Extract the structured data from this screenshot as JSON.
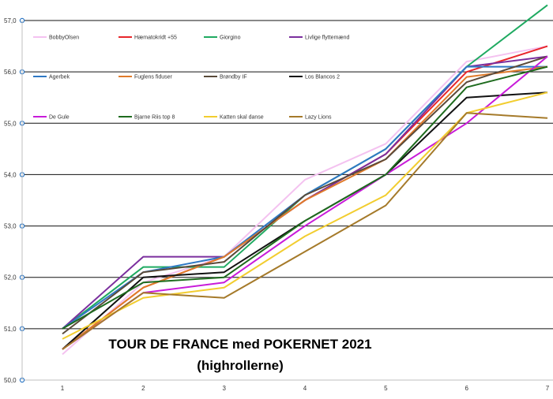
{
  "chart_data": {
    "type": "line",
    "title": "TOUR DE FRANCE med POKERNET 2021",
    "subtitle": "(highrollerne)",
    "xlabel": "",
    "ylabel": "",
    "x": [
      "1",
      "2",
      "3",
      "4",
      "5",
      "6",
      "7"
    ],
    "ylim": [
      50.0,
      57.0
    ],
    "yticks": [
      "50,0",
      "51,0",
      "52,0",
      "53,0",
      "54,0",
      "55,0",
      "56,0",
      "57,0"
    ],
    "grid": true,
    "legend_position": "top-left, inside plot",
    "series": [
      {
        "name": "BobbyOlsen",
        "color": "#f4c2f0",
        "values": [
          50.5,
          51.9,
          52.4,
          53.9,
          54.6,
          56.2,
          56.5
        ]
      },
      {
        "name": "Hæmatokridt +55",
        "color": "#e8262b",
        "values": [
          50.6,
          51.8,
          52.4,
          53.5,
          54.4,
          56.0,
          56.5
        ]
      },
      {
        "name": "Giorgino",
        "color": "#1faa61",
        "values": [
          51.0,
          52.2,
          52.2,
          53.6,
          54.5,
          56.1,
          57.3
        ]
      },
      {
        "name": "Livlige flyttemænd",
        "color": "#7b2f9e",
        "values": [
          51.0,
          52.4,
          52.4,
          53.5,
          54.4,
          56.1,
          56.3
        ]
      },
      {
        "name": "Agerbek",
        "color": "#2f78c4",
        "values": [
          51.0,
          52.1,
          52.4,
          53.6,
          54.5,
          56.1,
          56.1
        ]
      },
      {
        "name": "Fuglens fiduser",
        "color": "#e07b2a",
        "values": [
          50.6,
          51.8,
          52.4,
          53.5,
          54.3,
          55.9,
          56.1
        ]
      },
      {
        "name": "Brøndby IF",
        "color": "#5a4a3a",
        "values": [
          50.9,
          52.1,
          52.3,
          53.6,
          54.3,
          55.8,
          56.3
        ]
      },
      {
        "name": "Los Blancos 2",
        "color": "#111111",
        "values": [
          50.6,
          52.0,
          52.1,
          53.1,
          54.0,
          55.5,
          55.6
        ]
      },
      {
        "name": "De Gule",
        "color": "#c81bd9",
        "values": [
          50.6,
          51.7,
          51.9,
          53.0,
          54.0,
          55.0,
          56.3
        ]
      },
      {
        "name": "Bjarne Riis top 8",
        "color": "#1e6b1e",
        "values": [
          51.0,
          51.9,
          52.0,
          53.1,
          54.0,
          55.7,
          56.1
        ]
      },
      {
        "name": "Katten skal danse",
        "color": "#f2cd2f",
        "values": [
          50.8,
          51.6,
          51.8,
          52.8,
          53.6,
          55.2,
          55.6
        ]
      },
      {
        "name": "Lazy Lions",
        "color": "#a57a2a",
        "values": [
          50.6,
          51.7,
          51.6,
          52.5,
          53.4,
          55.2,
          55.1
        ]
      }
    ]
  }
}
